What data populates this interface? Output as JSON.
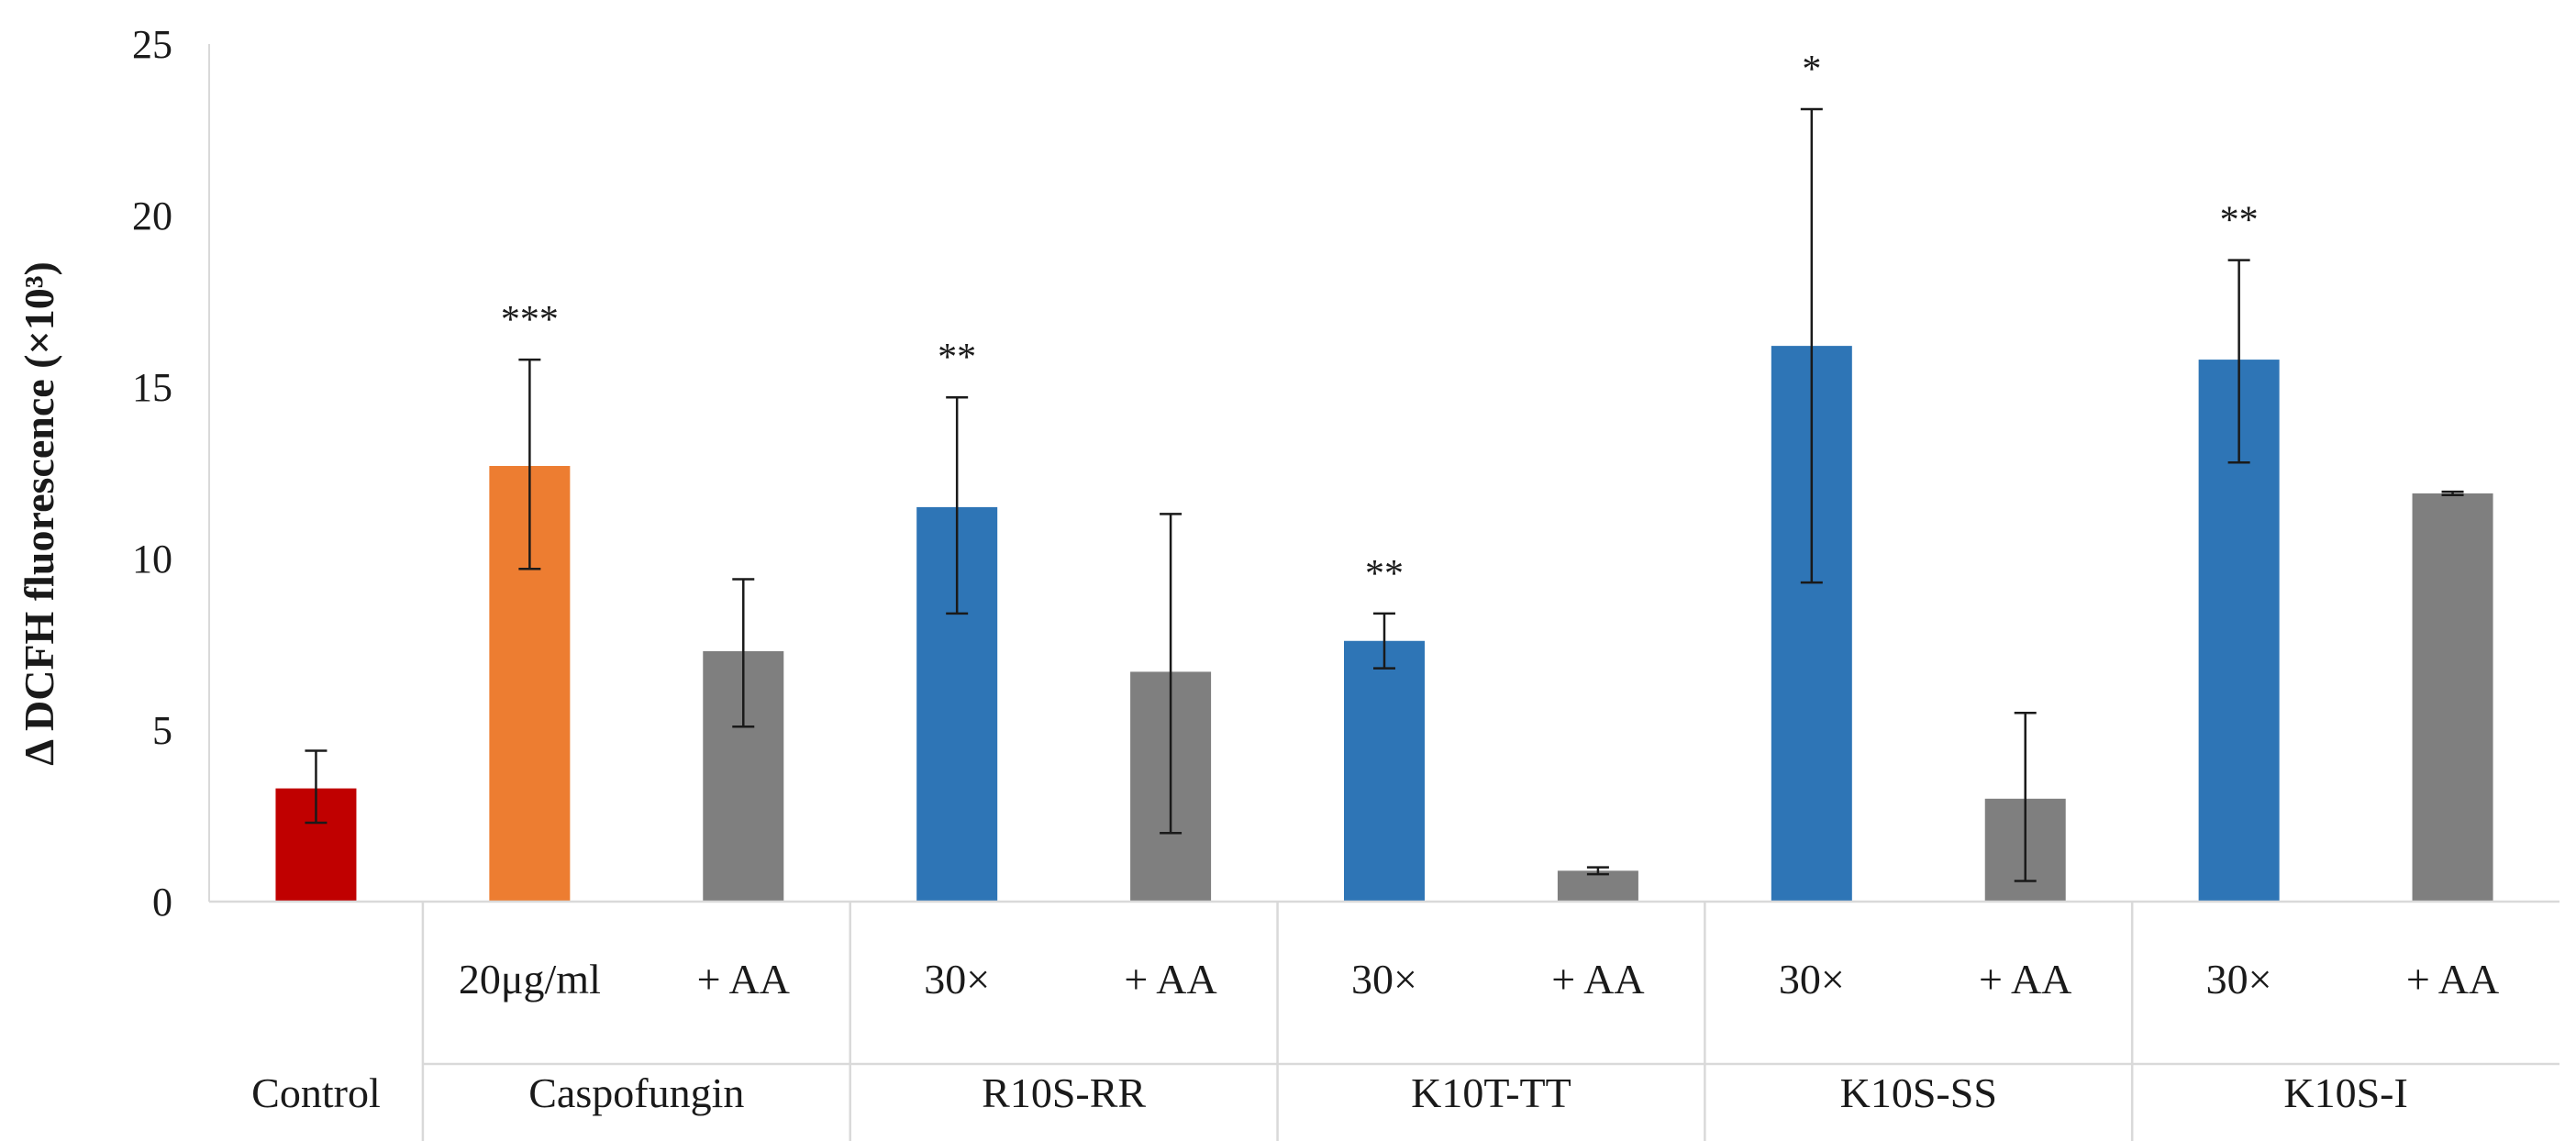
{
  "chart_data": {
    "type": "bar",
    "ylabel": "Δ DCFH fluorescence (×10³)",
    "ylim": [
      0,
      25
    ],
    "yticks": [
      0,
      5,
      10,
      15,
      20,
      25
    ],
    "grid": false,
    "bars": [
      {
        "group": "Control",
        "label": "",
        "value": 3.3,
        "err_low": 2.3,
        "err_high": 4.4,
        "color": "#c00000",
        "sig": ""
      },
      {
        "group": "Caspofungin",
        "label": "20μg/ml",
        "value": 12.7,
        "err_low": 9.7,
        "err_high": 15.8,
        "color": "#ed7d31",
        "sig": "***"
      },
      {
        "group": "Caspofungin",
        "label": "+ AA",
        "value": 7.3,
        "err_low": 5.1,
        "err_high": 9.4,
        "color": "#7f7f7f",
        "sig": ""
      },
      {
        "group": "R10S-RR",
        "label": "30×",
        "value": 11.5,
        "err_low": 8.4,
        "err_high": 14.7,
        "color": "#2e75b6",
        "sig": "**"
      },
      {
        "group": "R10S-RR",
        "label": "+ AA",
        "value": 6.7,
        "err_low": 2.0,
        "err_high": 11.3,
        "color": "#7f7f7f",
        "sig": ""
      },
      {
        "group": "K10T-TT",
        "label": "30×",
        "value": 7.6,
        "err_low": 6.8,
        "err_high": 8.4,
        "color": "#2e75b6",
        "sig": "**"
      },
      {
        "group": "K10T-TT",
        "label": "+ AA",
        "value": 0.9,
        "err_low": 0.8,
        "err_high": 1.0,
        "color": "#7f7f7f",
        "sig": ""
      },
      {
        "group": "K10S-SS",
        "label": "30×",
        "value": 16.2,
        "err_low": 9.3,
        "err_high": 23.1,
        "color": "#2e75b6",
        "sig": "*"
      },
      {
        "group": "K10S-SS",
        "label": "+ AA",
        "value": 3.0,
        "err_low": 0.6,
        "err_high": 5.5,
        "color": "#7f7f7f",
        "sig": ""
      },
      {
        "group": "K10S-I",
        "label": "30×",
        "value": 15.8,
        "err_low": 12.8,
        "err_high": 18.7,
        "color": "#2e75b6",
        "sig": "**"
      },
      {
        "group": "K10S-I",
        "label": "+ AA",
        "value": 11.9,
        "err_low": 11.85,
        "err_high": 11.95,
        "color": "#7f7f7f",
        "sig": ""
      }
    ],
    "groups": [
      "Control",
      "Caspofungin",
      "R10S-RR",
      "K10T-TT",
      "K10S-SS",
      "K10S-I"
    ]
  }
}
